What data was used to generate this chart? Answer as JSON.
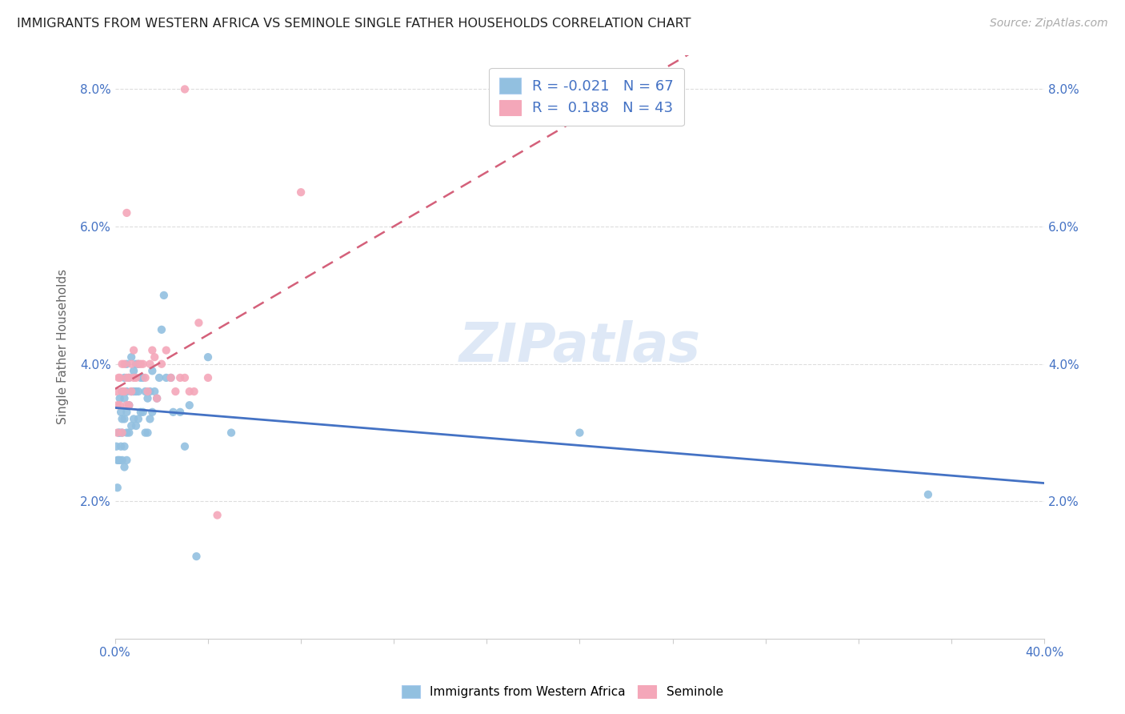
{
  "title": "IMMIGRANTS FROM WESTERN AFRICA VS SEMINOLE SINGLE FATHER HOUSEHOLDS CORRELATION CHART",
  "source": "Source: ZipAtlas.com",
  "ylabel": "Single Father Households",
  "xlim": [
    0.0,
    0.4
  ],
  "ylim": [
    0.0,
    0.085
  ],
  "xtick_positions": [
    0.0,
    0.04,
    0.08,
    0.12,
    0.16,
    0.2,
    0.24,
    0.28,
    0.32,
    0.36,
    0.4
  ],
  "xtick_labels_show": {
    "0.0": "0.0%",
    "0.40": "40.0%"
  },
  "ytick_positions": [
    0.0,
    0.02,
    0.04,
    0.06,
    0.08
  ],
  "ytick_labels": [
    "",
    "2.0%",
    "4.0%",
    "6.0%",
    "8.0%"
  ],
  "ytick_right_positions": [
    0.02,
    0.04,
    0.06,
    0.08
  ],
  "ytick_right_labels": [
    "2.0%",
    "4.0%",
    "6.0%",
    "8.0%"
  ],
  "blue_color": "#92c0e0",
  "pink_color": "#f4a7b9",
  "blue_line_color": "#4472c4",
  "pink_line_color": "#d4607a",
  "blue_R": -0.021,
  "blue_N": 67,
  "pink_R": 0.188,
  "pink_N": 43,
  "legend_label_blue": "Immigrants from Western Africa",
  "legend_label_pink": "Seminole",
  "watermark": "ZIPatlas",
  "blue_points_x": [
    0.0005,
    0.001,
    0.001,
    0.0015,
    0.0015,
    0.002,
    0.002,
    0.002,
    0.0025,
    0.0025,
    0.003,
    0.003,
    0.003,
    0.003,
    0.004,
    0.004,
    0.004,
    0.004,
    0.004,
    0.005,
    0.005,
    0.005,
    0.005,
    0.005,
    0.006,
    0.006,
    0.006,
    0.007,
    0.007,
    0.007,
    0.008,
    0.008,
    0.008,
    0.009,
    0.009,
    0.009,
    0.01,
    0.01,
    0.01,
    0.011,
    0.011,
    0.012,
    0.012,
    0.013,
    0.013,
    0.014,
    0.014,
    0.015,
    0.015,
    0.016,
    0.016,
    0.017,
    0.018,
    0.019,
    0.02,
    0.021,
    0.022,
    0.024,
    0.025,
    0.028,
    0.03,
    0.032,
    0.035,
    0.04,
    0.05,
    0.2,
    0.35
  ],
  "blue_points_y": [
    0.028,
    0.026,
    0.022,
    0.03,
    0.026,
    0.035,
    0.03,
    0.026,
    0.033,
    0.028,
    0.036,
    0.032,
    0.03,
    0.026,
    0.038,
    0.035,
    0.032,
    0.028,
    0.025,
    0.04,
    0.036,
    0.033,
    0.03,
    0.026,
    0.038,
    0.034,
    0.03,
    0.041,
    0.036,
    0.031,
    0.039,
    0.036,
    0.032,
    0.04,
    0.036,
    0.031,
    0.04,
    0.036,
    0.032,
    0.038,
    0.033,
    0.038,
    0.033,
    0.036,
    0.03,
    0.035,
    0.03,
    0.036,
    0.032,
    0.039,
    0.033,
    0.036,
    0.035,
    0.038,
    0.045,
    0.05,
    0.038,
    0.038,
    0.033,
    0.033,
    0.028,
    0.034,
    0.012,
    0.041,
    0.03,
    0.03,
    0.021
  ],
  "pink_points_x": [
    0.0005,
    0.001,
    0.001,
    0.0015,
    0.002,
    0.002,
    0.003,
    0.003,
    0.003,
    0.004,
    0.004,
    0.005,
    0.005,
    0.005,
    0.006,
    0.006,
    0.007,
    0.007,
    0.008,
    0.008,
    0.009,
    0.01,
    0.011,
    0.012,
    0.013,
    0.014,
    0.015,
    0.016,
    0.017,
    0.018,
    0.02,
    0.022,
    0.024,
    0.026,
    0.028,
    0.03,
    0.032,
    0.034,
    0.036,
    0.04,
    0.044,
    0.08,
    0.03
  ],
  "pink_points_y": [
    0.036,
    0.034,
    0.03,
    0.038,
    0.038,
    0.034,
    0.04,
    0.036,
    0.03,
    0.04,
    0.036,
    0.062,
    0.038,
    0.034,
    0.038,
    0.034,
    0.04,
    0.036,
    0.042,
    0.038,
    0.038,
    0.04,
    0.04,
    0.04,
    0.038,
    0.036,
    0.04,
    0.042,
    0.041,
    0.035,
    0.04,
    0.042,
    0.038,
    0.036,
    0.038,
    0.038,
    0.036,
    0.036,
    0.046,
    0.038,
    0.018,
    0.065,
    0.08
  ]
}
